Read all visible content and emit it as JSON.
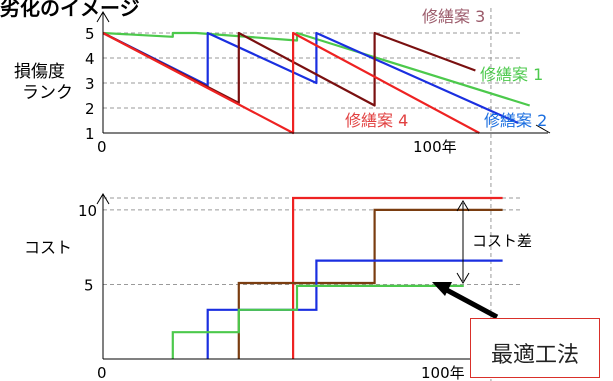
{
  "header": {
    "title": "劣化のイメージ"
  },
  "colors": {
    "plan1": "#4cc94c",
    "plan2": "#1a2fe0",
    "plan3": "#7a1010",
    "plan4": "#ee2222",
    "cost_brown": "#7a3d10",
    "plan3_label": "#9b5a6a",
    "plan1_label": "#4cc94c",
    "plan2_label": "#1a6ee0",
    "plan4_label": "#e14040",
    "callout_border": "#d9302a",
    "axis": "#000000",
    "grid": "#9a9a9a"
  },
  "chart_data": [
    {
      "type": "line",
      "ylabel": "損傷度\nランク",
      "yticks": [
        1,
        2,
        3,
        4,
        5
      ],
      "xtick_labels": [
        "0",
        "100年"
      ],
      "xlim": [
        0,
        116
      ],
      "ylim": [
        1,
        5.5
      ],
      "series_labels": {
        "plan1": "修繕案 1",
        "plan2": "修繕案 2",
        "plan3": "修繕案 3",
        "plan4": "修繕案 4"
      },
      "series": [
        {
          "name": "修繕案 1",
          "color_key": "plan1",
          "segments": [
            [
              [
                0,
                5
              ],
              [
                18,
                4.85
              ],
              [
                18,
                5
              ],
              [
                24,
                5
              ],
              [
                50,
                4.7
              ],
              [
                50,
                5
              ],
              [
                110,
                2.1
              ]
            ]
          ]
        },
        {
          "name": "修繕案 2",
          "color_key": "plan2",
          "segments": [
            [
              [
                0,
                5
              ],
              [
                27,
                2.9
              ],
              [
                27,
                5
              ],
              [
                55,
                3
              ],
              [
                55,
                5
              ],
              [
                107,
                1.4
              ]
            ]
          ]
        },
        {
          "name": "修繕案 3",
          "color_key": "plan3",
          "segments": [
            [
              [
                0,
                5
              ],
              [
                35,
                2.2
              ],
              [
                35,
                5
              ],
              [
                70,
                2.1
              ],
              [
                70,
                5
              ],
              [
                96,
                3.5
              ]
            ]
          ]
        },
        {
          "name": "修繕案 4",
          "color_key": "plan4",
          "segments": [
            [
              [
                0,
                5
              ],
              [
                49,
                1
              ],
              [
                49,
                5
              ],
              [
                97,
                1
              ]
            ]
          ]
        }
      ]
    },
    {
      "type": "line",
      "ylabel": "コスト",
      "yticks": [
        5,
        10
      ],
      "xtick_labels": [
        "0",
        "100年"
      ],
      "xlim": [
        0,
        116
      ],
      "ylim": [
        0,
        11
      ],
      "annotation": "コスト差",
      "series": [
        {
          "name": "",
          "color_key": "plan4",
          "points": [
            [
              49,
              0
            ],
            [
              49,
              10.8
            ],
            [
              103,
              10.8
            ]
          ]
        },
        {
          "name": "",
          "color_key": "cost_brown",
          "points": [
            [
              35,
              0
            ],
            [
              35,
              5.1
            ],
            [
              70,
              5.1
            ],
            [
              70,
              10
            ],
            [
              103,
              10
            ]
          ]
        },
        {
          "name": "",
          "color_key": "plan2",
          "points": [
            [
              27,
              0
            ],
            [
              27,
              3.3
            ],
            [
              55,
              3.3
            ],
            [
              55,
              6.6
            ],
            [
              103,
              6.6
            ]
          ]
        },
        {
          "name": "",
          "color_key": "plan1",
          "points": [
            [
              18,
              0
            ],
            [
              18,
              1.8
            ],
            [
              35,
              1.8
            ],
            [
              35,
              3.3
            ],
            [
              50,
              3.3
            ],
            [
              50,
              4.9
            ],
            [
              93,
              4.9
            ]
          ]
        }
      ]
    }
  ],
  "callout": {
    "label": "最適工法"
  }
}
